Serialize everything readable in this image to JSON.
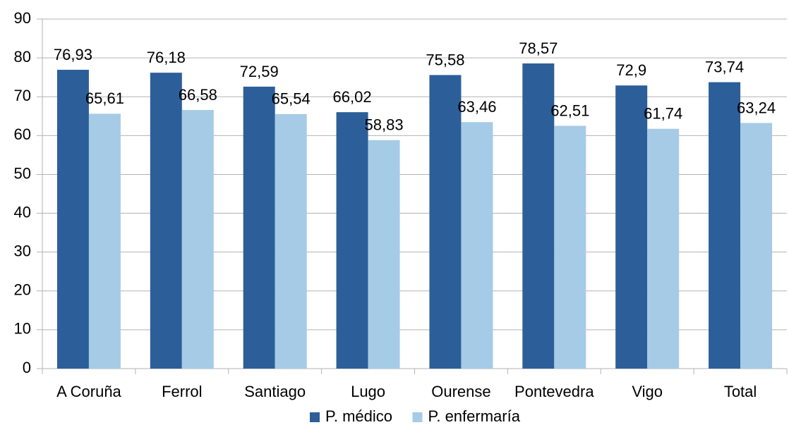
{
  "chart_data": {
    "type": "bar",
    "categories": [
      "A Coruña",
      "Ferrol",
      "Santiago",
      "Lugo",
      "Ourense",
      "Pontevedra",
      "Vigo",
      "Total"
    ],
    "series": [
      {
        "name": "P. médico",
        "color": "#2c5f99",
        "values": [
          76.93,
          76.18,
          72.59,
          66.02,
          75.58,
          78.57,
          72.9,
          73.74
        ],
        "value_labels": [
          "76,93",
          "76,18",
          "72,59",
          "66,02",
          "75,58",
          "78,57",
          "72,9",
          "73,74"
        ]
      },
      {
        "name": "P. enfermaría",
        "color": "#a6cbe6",
        "values": [
          65.61,
          66.58,
          65.54,
          58.83,
          63.46,
          62.51,
          61.74,
          63.24
        ],
        "value_labels": [
          "65,61",
          "66,58",
          "65,54",
          "58,83",
          "63,46",
          "62,51",
          "61,74",
          "63,24"
        ]
      }
    ],
    "ylim": [
      0,
      90
    ],
    "yticks": [
      0,
      10,
      20,
      30,
      40,
      50,
      60,
      70,
      80,
      90
    ],
    "grid": true,
    "legend": "bottom"
  }
}
